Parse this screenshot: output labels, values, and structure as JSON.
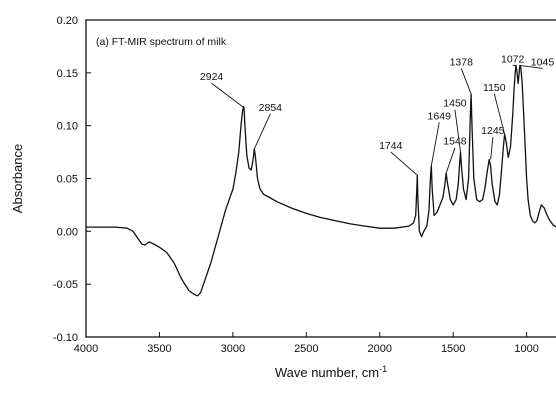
{
  "chart_data": {
    "type": "line",
    "title": "(a) FT-MIR spectrum of milk",
    "xlabel": "Wave number, cm",
    "xlabel_superscript": "-1",
    "ylabel": "Absorbance",
    "xlim": [
      4000,
      800
    ],
    "ylim": [
      -0.1,
      0.2
    ],
    "x_reversed": true,
    "x_ticks": [
      4000,
      3500,
      3000,
      2500,
      2000,
      1500,
      1000
    ],
    "x_tick_labels": [
      "4000",
      "3500",
      "3000",
      "2500",
      "2000",
      "1500",
      "1000"
    ],
    "y_ticks": [
      -0.1,
      -0.05,
      0.0,
      0.05,
      0.1,
      0.15,
      0.2
    ],
    "y_tick_labels": [
      "-0.10",
      "-0.05",
      "0.00",
      "0.05",
      "0.10",
      "0.15",
      "0.20"
    ],
    "grid": false,
    "line_color": "#111111",
    "series": [
      {
        "x": [
          4000,
          3800,
          3720,
          3680,
          3650,
          3620,
          3600,
          3570,
          3540,
          3500,
          3450,
          3400,
          3350,
          3300,
          3260,
          3240,
          3220,
          3200,
          3150,
          3100,
          3050,
          3000,
          2980,
          2960,
          2945,
          2935,
          2928,
          2924,
          2918,
          2905,
          2890,
          2875,
          2862,
          2854,
          2846,
          2832,
          2815,
          2790,
          2750,
          2700,
          2600,
          2500,
          2400,
          2300,
          2200,
          2100,
          2000,
          1900,
          1800,
          1770,
          1755,
          1748,
          1744,
          1740,
          1730,
          1715,
          1700,
          1680,
          1665,
          1655,
          1649,
          1643,
          1630,
          1610,
          1590,
          1570,
          1556,
          1548,
          1538,
          1520,
          1500,
          1480,
          1465,
          1456,
          1450,
          1443,
          1430,
          1412,
          1395,
          1384,
          1378,
          1372,
          1360,
          1340,
          1320,
          1300,
          1285,
          1270,
          1255,
          1245,
          1235,
          1215,
          1200,
          1185,
          1170,
          1158,
          1150,
          1140,
          1125,
          1110,
          1095,
          1085,
          1078,
          1072,
          1065,
          1058,
          1052,
          1048,
          1045,
          1040,
          1030,
          1020,
          1010,
          1000,
          990,
          975,
          960,
          945,
          930,
          915,
          900,
          880,
          860,
          840,
          820,
          800
        ],
        "y": [
          0.004,
          0.004,
          0.003,
          0.0,
          -0.006,
          -0.012,
          -0.013,
          -0.01,
          -0.012,
          -0.015,
          -0.02,
          -0.03,
          -0.045,
          -0.056,
          -0.06,
          -0.061,
          -0.058,
          -0.05,
          -0.03,
          -0.005,
          0.02,
          0.04,
          0.055,
          0.075,
          0.1,
          0.113,
          0.118,
          0.117,
          0.1,
          0.072,
          0.06,
          0.058,
          0.068,
          0.078,
          0.07,
          0.05,
          0.04,
          0.035,
          0.032,
          0.028,
          0.022,
          0.017,
          0.013,
          0.01,
          0.007,
          0.005,
          0.003,
          0.003,
          0.005,
          0.008,
          0.015,
          0.04,
          0.053,
          0.03,
          0.0,
          -0.005,
          0.0,
          0.005,
          0.02,
          0.05,
          0.062,
          0.04,
          0.015,
          0.018,
          0.025,
          0.032,
          0.045,
          0.055,
          0.045,
          0.03,
          0.025,
          0.03,
          0.045,
          0.065,
          0.075,
          0.06,
          0.04,
          0.03,
          0.05,
          0.105,
          0.13,
          0.1,
          0.05,
          0.03,
          0.028,
          0.03,
          0.04,
          0.055,
          0.068,
          0.062,
          0.045,
          0.028,
          0.025,
          0.035,
          0.06,
          0.08,
          0.092,
          0.085,
          0.07,
          0.08,
          0.11,
          0.135,
          0.15,
          0.157,
          0.15,
          0.14,
          0.148,
          0.155,
          0.157,
          0.155,
          0.14,
          0.11,
          0.08,
          0.05,
          0.03,
          0.015,
          0.01,
          0.008,
          0.01,
          0.018,
          0.025,
          0.022,
          0.015,
          0.01,
          0.006,
          0.004
        ]
      }
    ],
    "annotations": [
      {
        "text": "2924",
        "x": 2924,
        "y": 0.117,
        "label_x": 3145,
        "label_y": 0.143
      },
      {
        "text": "2854",
        "x": 2854,
        "y": 0.078,
        "label_x": 2745,
        "label_y": 0.114
      },
      {
        "text": "1744",
        "x": 1744,
        "y": 0.053,
        "label_x": 1925,
        "label_y": 0.078
      },
      {
        "text": "1649",
        "x": 1649,
        "y": 0.062,
        "label_x": 1595,
        "label_y": 0.106
      },
      {
        "text": "1548",
        "x": 1548,
        "y": 0.055,
        "label_x": 1488,
        "label_y": 0.082
      },
      {
        "text": "1450",
        "x": 1450,
        "y": 0.075,
        "label_x": 1488,
        "label_y": 0.118
      },
      {
        "text": "1378",
        "x": 1378,
        "y": 0.13,
        "label_x": 1445,
        "label_y": 0.157
      },
      {
        "text": "1245",
        "x": 1245,
        "y": 0.068,
        "label_x": 1230,
        "label_y": 0.092
      },
      {
        "text": "1150",
        "x": 1150,
        "y": 0.092,
        "label_x": 1220,
        "label_y": 0.133
      },
      {
        "text": "1072",
        "x": 1072,
        "y": 0.157,
        "label_x": 1095,
        "label_y": 0.16
      },
      {
        "text": "1045",
        "x": 1045,
        "y": 0.157,
        "label_x": 892,
        "label_y": 0.157
      }
    ]
  }
}
